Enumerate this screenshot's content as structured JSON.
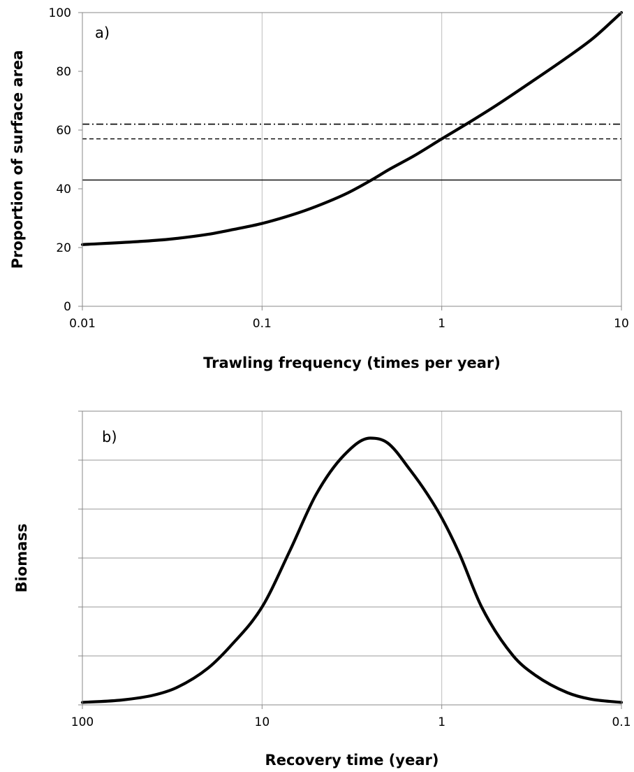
{
  "chart_data": [
    {
      "panel_label": "a)",
      "type": "line",
      "xlabel": "Trawling frequency (times per year)",
      "ylabel": "Proportion of surface area",
      "xscale": "log",
      "xlim": [
        0.01,
        10
      ],
      "ylim": [
        0,
        100
      ],
      "xticks": [
        0.01,
        0.1,
        1,
        10
      ],
      "xtick_labels": [
        "0.01",
        "0.1",
        "1",
        "10"
      ],
      "yticks": [
        0,
        20,
        40,
        60,
        80,
        100
      ],
      "ytick_labels": [
        "0",
        "20",
        "40",
        "60",
        "80",
        "100"
      ],
      "grid": "vertical",
      "series": [
        {
          "style": "solid-thick",
          "x": [
            0.01,
            0.02,
            0.03,
            0.05,
            0.07,
            0.1,
            0.15,
            0.2,
            0.3,
            0.42,
            0.5,
            0.7,
            1,
            1.5,
            2,
            3,
            5,
            7,
            10
          ],
          "y": [
            21,
            22,
            22.8,
            24.5,
            26.2,
            28.2,
            31.3,
            34,
            38.6,
            43.5,
            46.3,
            51.2,
            57,
            63.5,
            68.3,
            75.5,
            84.8,
            91.4,
            100
          ]
        },
        {
          "style": "dash-dot",
          "x": [
            0.01,
            10
          ],
          "y": [
            62,
            62
          ]
        },
        {
          "style": "dashed",
          "x": [
            0.01,
            10
          ],
          "y": [
            57,
            57
          ]
        },
        {
          "style": "solid-thin",
          "x": [
            0.01,
            10
          ],
          "y": [
            43,
            43
          ]
        }
      ]
    },
    {
      "panel_label": "b)",
      "type": "line",
      "xlabel": "Recovery time (year)",
      "ylabel": "Biomass",
      "xscale": "log",
      "xreversed": true,
      "xlim": [
        100,
        0.1
      ],
      "ylim": [
        0,
        6
      ],
      "xticks": [
        100,
        10,
        1,
        0.1
      ],
      "xtick_labels": [
        "100",
        "10",
        "1",
        "0.1"
      ],
      "yticks": [
        0,
        1,
        2,
        3,
        4,
        5,
        6
      ],
      "ytick_labels": [],
      "grid": "both",
      "series": [
        {
          "style": "solid-thick",
          "x": [
            100,
            60,
            40,
            30,
            20,
            15,
            10,
            7,
            5,
            3.5,
            2.5,
            2,
            1.5,
            1.2,
            1,
            0.8,
            0.6,
            0.4,
            0.3,
            0.2,
            0.15,
            0.1
          ],
          "y": [
            0.05,
            0.1,
            0.2,
            0.35,
            0.75,
            1.2,
            2.0,
            3.15,
            4.3,
            5.1,
            5.45,
            5.35,
            4.8,
            4.3,
            3.82,
            3.1,
            2.0,
            1.0,
            0.6,
            0.25,
            0.12,
            0.05
          ]
        }
      ]
    }
  ]
}
